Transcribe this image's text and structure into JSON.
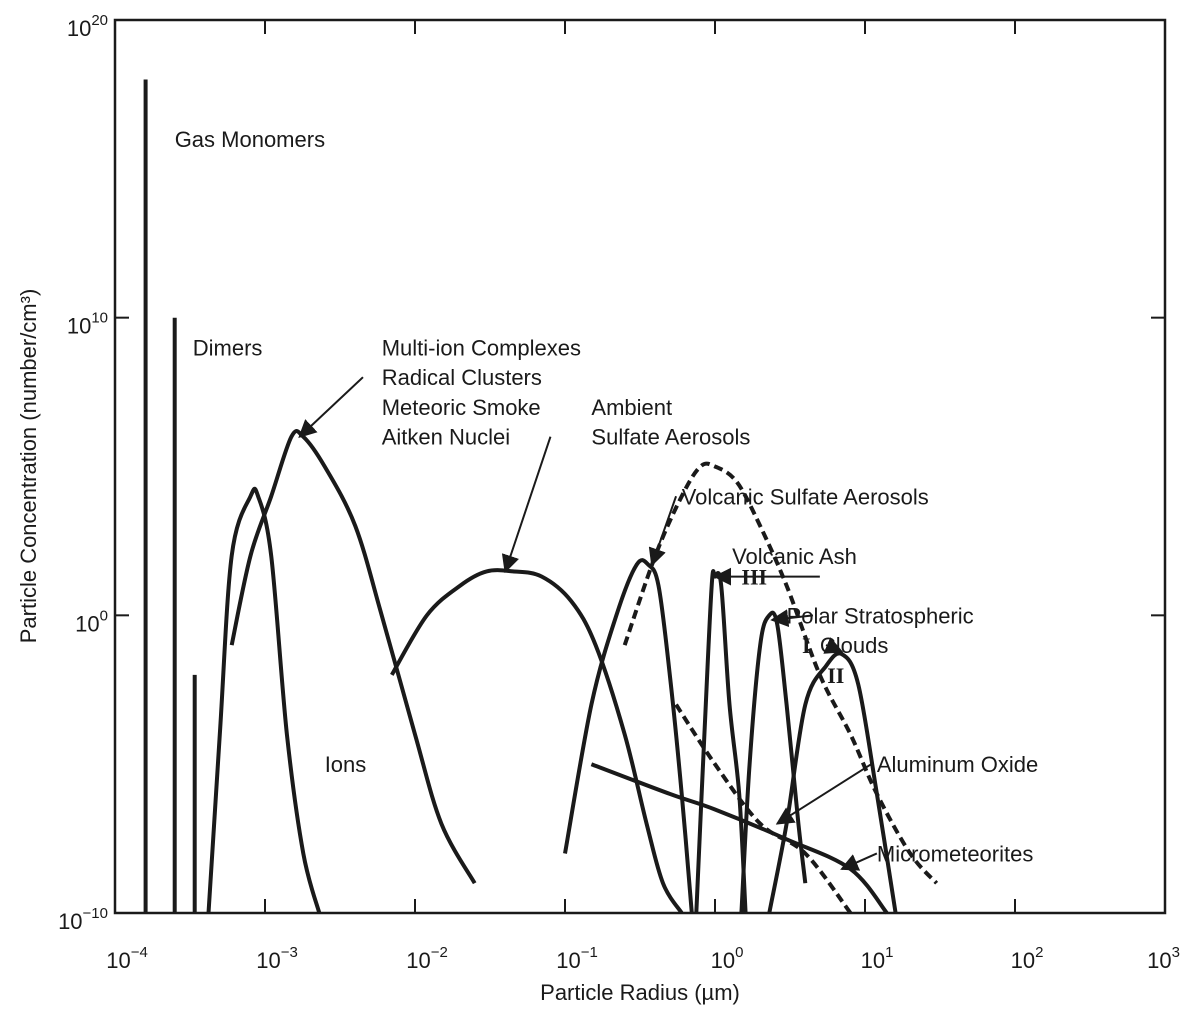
{
  "chart_data": {
    "type": "line",
    "title": "",
    "xlabel": "Particle Radius (µm)",
    "ylabel": "Particle Concentration (number/cm³)",
    "x_scale": "log",
    "y_scale": "log",
    "xlim": [
      0.0001,
      1000
    ],
    "ylim": [
      1e-10,
      1e+20
    ],
    "x_ticks": [
      {
        "value": 0.0001,
        "base": "10",
        "exp": "−4"
      },
      {
        "value": 0.001,
        "base": "10",
        "exp": "−3"
      },
      {
        "value": 0.01,
        "base": "10",
        "exp": "−2"
      },
      {
        "value": 0.1,
        "base": "10",
        "exp": "−1"
      },
      {
        "value": 1,
        "base": "10",
        "exp": "0"
      },
      {
        "value": 10,
        "base": "10",
        "exp": "1"
      },
      {
        "value": 100,
        "base": "10",
        "exp": "2"
      },
      {
        "value": 1000,
        "base": "10",
        "exp": "3"
      }
    ],
    "y_ticks": [
      {
        "value": 1e-10,
        "base": "10",
        "exp": "−10"
      },
      {
        "value": 1,
        "base": "10",
        "exp": "0"
      },
      {
        "value": 10000000000.0,
        "base": "10",
        "exp": "10"
      },
      {
        "value": 1e+20,
        "base": "10",
        "exp": "20"
      }
    ],
    "grid": false,
    "series": [
      {
        "name": "Gas Monomers",
        "style": "solid",
        "kind": "spike",
        "x": [
          0.00016,
          0.00016
        ],
        "y": [
          1e-10,
          1e+18
        ]
      },
      {
        "name": "Dimers",
        "style": "solid",
        "kind": "spike",
        "x": [
          0.00025,
          0.00025
        ],
        "y": [
          1e-10,
          10000000000.0
        ]
      },
      {
        "name": "",
        "style": "solid",
        "kind": "spike",
        "x": [
          0.00034,
          0.00034
        ],
        "y": [
          1e-10,
          0.01
        ]
      },
      {
        "name": "Ions",
        "style": "solid",
        "x": [
          0.00042,
          0.0005,
          0.0006,
          0.0008,
          0.0009,
          0.0011,
          0.0014,
          0.0018,
          0.0023
        ],
        "y": [
          1e-10,
          0.0001,
          100,
          10000,
          10000,
          100,
          0.0001,
          1e-08,
          1e-10
        ]
      },
      {
        "name": "Multi-ion Complexes",
        "style": "solid",
        "x": [
          0.0006,
          0.0008,
          0.0011,
          0.0015,
          0.0018,
          0.0025,
          0.004,
          0.006,
          0.01,
          0.015,
          0.025
        ],
        "y": [
          0.1,
          100,
          10000,
          1000000,
          1000000,
          100000,
          1000,
          1,
          0.0001,
          1e-07,
          1e-09
        ]
      },
      {
        "name": "Ambient Sulfate Aerosols",
        "style": "solid",
        "x": [
          0.007,
          0.012,
          0.02,
          0.03,
          0.045,
          0.07,
          0.11,
          0.16,
          0.25,
          0.35,
          0.45,
          0.6
        ],
        "y": [
          0.01,
          1,
          10,
          30,
          30,
          20,
          3,
          0.1,
          0.0001,
          1e-07,
          1e-09,
          1e-10
        ]
      },
      {
        "name": "Volcanic Sulfate Aerosols",
        "style": "solid",
        "x": [
          0.1,
          0.15,
          0.22,
          0.3,
          0.36,
          0.42,
          0.5,
          0.6,
          0.7
        ],
        "y": [
          1e-08,
          0.001,
          1,
          50,
          50,
          10,
          0.01,
          1e-06,
          1e-10
        ]
      },
      {
        "name": "Volcanic Ash",
        "style": "dashed",
        "x": [
          0.25,
          0.4,
          0.6,
          0.8,
          1,
          1.4,
          2,
          3,
          5,
          8,
          12,
          20,
          30
        ],
        "y": [
          0.1,
          100,
          10000,
          100000,
          100000,
          30000,
          1000,
          10,
          0.01,
          0.0001,
          1e-06,
          1e-08,
          1e-09
        ]
      },
      {
        "name": "III",
        "style": "solid",
        "x": [
          0.75,
          0.85,
          0.95,
          1.0,
          1.1,
          1.25,
          1.45,
          1.6
        ],
        "y": [
          1e-10,
          0.0001,
          10,
          20,
          10,
          0.001,
          1e-06,
          1e-10
        ]
      },
      {
        "name": "I",
        "style": "solid",
        "x": [
          1.5,
          1.7,
          2,
          2.3,
          2.6,
          3,
          3.6,
          4
        ],
        "y": [
          1e-10,
          1e-05,
          0.1,
          1,
          0.5,
          0.001,
          1e-07,
          1e-09
        ]
      },
      {
        "name": "II",
        "style": "solid",
        "x": [
          2.3,
          3,
          4,
          5.5,
          7,
          9,
          12,
          16
        ],
        "y": [
          1e-10,
          1e-07,
          0.001,
          0.02,
          0.05,
          0.005,
          1e-06,
          1e-10
        ]
      },
      {
        "name": "Aluminum Oxide",
        "style": "dashed",
        "x": [
          0.55,
          1,
          2,
          4,
          8
        ],
        "y": [
          0.001,
          1e-05,
          1e-07,
          1e-08,
          1e-10
        ]
      },
      {
        "name": "Micrometeorites",
        "style": "solid",
        "x": [
          0.15,
          0.5,
          1,
          3,
          8,
          14
        ],
        "y": [
          1e-05,
          1e-06,
          3e-07,
          3e-08,
          3e-09,
          1e-10
        ]
      }
    ],
    "annotations": [
      {
        "text": "Gas Monomers",
        "x": 0.00025,
        "y": 1e+16
      },
      {
        "text": "Dimers",
        "x": 0.00033,
        "y": 1000000000.0
      },
      {
        "text": "Multi-ion Complexes",
        "x": 0.006,
        "y": 1000000000.0
      },
      {
        "text": "Radical Clusters",
        "x": 0.006,
        "y": 100000000.0
      },
      {
        "text": "Meteoric Smoke",
        "x": 0.006,
        "y": 10000000.0
      },
      {
        "text": "Aitken Nuclei",
        "x": 0.006,
        "y": 1000000.0
      },
      {
        "text": "Ambient",
        "x": 0.15,
        "y": 10000000.0
      },
      {
        "text": "Sulfate Aerosols",
        "x": 0.15,
        "y": 1000000.0
      },
      {
        "text": "Volcanic Sulfate Aerosols",
        "x": 0.6,
        "y": 10000.0
      },
      {
        "text": "Volcanic Ash",
        "x": 1.3,
        "y": 100.0
      },
      {
        "text": "III",
        "x": 1.5,
        "y": 20.0
      },
      {
        "text": "Polar Stratospheric",
        "x": 3.0,
        "y": 1.0
      },
      {
        "text": "Clouds",
        "x": 5.0,
        "y": 0.1
      },
      {
        "text": "I",
        "x": 3.8,
        "y": 0.1
      },
      {
        "text": "II",
        "x": 5.6,
        "y": 0.01
      },
      {
        "text": "Ions",
        "x": 0.0025,
        "y": 1e-05
      },
      {
        "text": "Aluminum Oxide",
        "x": 12,
        "y": 1e-05
      },
      {
        "text": "Micrometeorites",
        "x": 12,
        "y": 1e-08
      }
    ],
    "arrows": [
      {
        "from": [
          0.0045,
          100000000.0
        ],
        "to": [
          0.0017,
          1000000.0
        ]
      },
      {
        "from": [
          0.08,
          1000000.0
        ],
        "to": [
          0.04,
          30
        ]
      },
      {
        "from": [
          0.55,
          10000.0
        ],
        "to": [
          0.38,
          50
        ]
      },
      {
        "from": [
          5.0,
          20
        ],
        "to": [
          1.0,
          20
        ]
      },
      {
        "from": [
          4.5,
          1
        ],
        "to": [
          2.4,
          0.7
        ]
      },
      {
        "from": [
          5.5,
          0.1
        ],
        "to": [
          7.0,
          0.06
        ]
      },
      {
        "from": [
          11,
          1e-05
        ],
        "to": [
          2.6,
          1e-07
        ]
      },
      {
        "from": [
          12,
          1e-08
        ],
        "to": [
          7,
          3e-09
        ]
      }
    ]
  }
}
